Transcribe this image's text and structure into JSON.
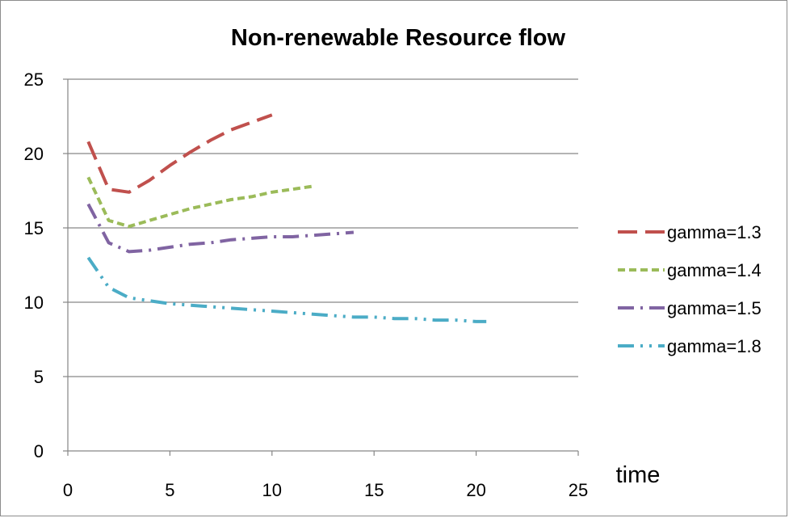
{
  "chart_data": {
    "type": "line",
    "title": "Non-renewable Resource flow",
    "xlabel": "time",
    "ylabel": "",
    "xlim": [
      0,
      25
    ],
    "ylim": [
      0,
      25
    ],
    "xticks": [
      "0",
      "5",
      "10",
      "15",
      "20",
      "25"
    ],
    "yticks": [
      "0",
      "5",
      "10",
      "15",
      "20",
      "25"
    ],
    "grid": "horizontal",
    "legend_position": "right",
    "series": [
      {
        "name": "gamma=1.3",
        "color": "#C0504D",
        "dash": "long-dash",
        "x": [
          1,
          2,
          3,
          4,
          5,
          6,
          7,
          8,
          9,
          10
        ],
        "y": [
          20.8,
          17.6,
          17.4,
          18.2,
          19.2,
          20.1,
          20.9,
          21.6,
          22.1,
          22.6
        ]
      },
      {
        "name": "gamma=1.4",
        "color": "#9BBB59",
        "dash": "short-dash",
        "x": [
          1,
          2,
          3,
          4,
          5,
          6,
          7,
          8,
          9,
          10,
          11,
          12
        ],
        "y": [
          18.4,
          15.5,
          15.1,
          15.5,
          15.9,
          16.3,
          16.6,
          16.9,
          17.1,
          17.4,
          17.6,
          17.8
        ]
      },
      {
        "name": "gamma=1.5",
        "color": "#8064A2",
        "dash": "dash-dot",
        "x": [
          1,
          2,
          3,
          4,
          5,
          6,
          7,
          8,
          9,
          10,
          11,
          12,
          13,
          14
        ],
        "y": [
          16.6,
          14.0,
          13.4,
          13.5,
          13.7,
          13.9,
          14.0,
          14.2,
          14.3,
          14.4,
          14.4,
          14.5,
          14.6,
          14.7
        ]
      },
      {
        "name": "gamma=1.8",
        "color": "#4BACC6",
        "dash": "dash-dot-dot",
        "x": [
          1,
          2,
          3,
          4,
          5,
          6,
          7,
          8,
          9,
          10,
          11,
          12,
          13,
          14,
          15,
          16,
          17,
          18,
          19,
          20,
          20.5
        ],
        "y": [
          13.0,
          11.0,
          10.3,
          10.1,
          9.9,
          9.8,
          9.7,
          9.6,
          9.5,
          9.4,
          9.3,
          9.2,
          9.1,
          9.0,
          9.0,
          8.9,
          8.9,
          8.8,
          8.8,
          8.7,
          8.7
        ]
      }
    ]
  }
}
